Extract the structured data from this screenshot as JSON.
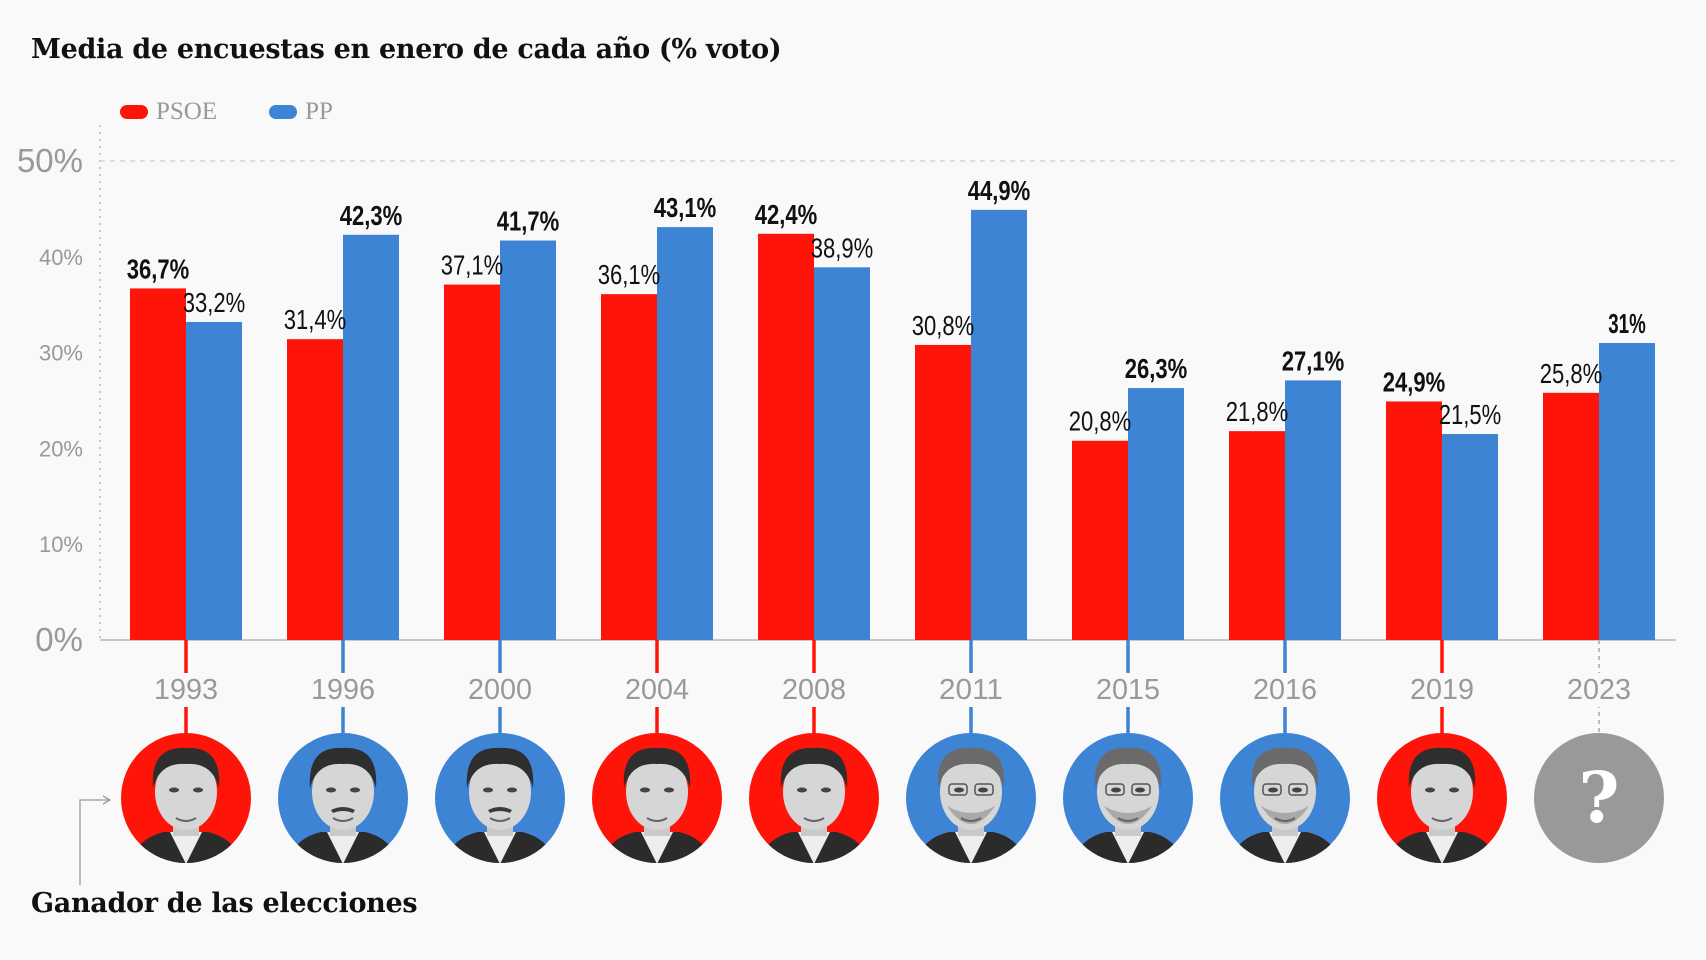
{
  "title": "Media de encuestas en enero de cada año (% voto)",
  "caption": "Ganador de las elecciones",
  "colors": {
    "PSOE": "#ff1409",
    "PP": "#3d84d4",
    "unknown": "#999999",
    "axis": "#cccccc",
    "text": "#111111",
    "muted": "#999999"
  },
  "legend": [
    {
      "name": "PSOE",
      "color": "#ff1409"
    },
    {
      "name": "PP",
      "color": "#3d84d4"
    }
  ],
  "chart_data": {
    "type": "bar",
    "title": "Media de encuestas en enero de cada año (% voto)",
    "xlabel": "",
    "ylabel": "% voto",
    "ylim": [
      0,
      50
    ],
    "yticks": [
      0,
      10,
      20,
      30,
      40,
      50
    ],
    "ytick_labels": [
      "0%",
      "10%",
      "20%",
      "30%",
      "40%",
      "50%"
    ],
    "grid": "dashed line at 50% only",
    "legend_position": "top-left",
    "categories": [
      "1993",
      "1996",
      "2000",
      "2004",
      "2008",
      "2011",
      "2015",
      "2016",
      "2019",
      "2023"
    ],
    "series": [
      {
        "name": "PSOE",
        "values": [
          36.7,
          31.4,
          37.1,
          36.1,
          42.4,
          30.8,
          20.8,
          21.8,
          24.9,
          25.8
        ],
        "labels": [
          "36,7%",
          "31,4%",
          "37,1%",
          "36,1%",
          "42,4%",
          "30,8%",
          "20,8%",
          "21,8%",
          "24,9%",
          "25,8%"
        ],
        "bold": [
          true,
          false,
          false,
          false,
          true,
          false,
          false,
          false,
          true,
          false
        ]
      },
      {
        "name": "PP",
        "values": [
          33.2,
          42.3,
          41.7,
          43.1,
          38.9,
          44.9,
          26.3,
          27.1,
          21.5,
          31
        ],
        "labels": [
          "33,2%",
          "42,3%",
          "41,7%",
          "43,1%",
          "38,9%",
          "44,9%",
          "26,3%",
          "27,1%",
          "21,5%",
          "31%"
        ],
        "bold": [
          false,
          true,
          true,
          true,
          false,
          true,
          true,
          true,
          false,
          true
        ]
      }
    ],
    "winners": [
      {
        "year": "1993",
        "party": "PSOE",
        "portrait": "psoe-leader-1"
      },
      {
        "year": "1996",
        "party": "PP",
        "portrait": "pp-leader-1"
      },
      {
        "year": "2000",
        "party": "PP",
        "portrait": "pp-leader-1"
      },
      {
        "year": "2004",
        "party": "PSOE",
        "portrait": "psoe-leader-2"
      },
      {
        "year": "2008",
        "party": "PSOE",
        "portrait": "psoe-leader-2"
      },
      {
        "year": "2011",
        "party": "PP",
        "portrait": "pp-leader-2"
      },
      {
        "year": "2015",
        "party": "PP",
        "portrait": "pp-leader-2"
      },
      {
        "year": "2016",
        "party": "PP",
        "portrait": "pp-leader-2"
      },
      {
        "year": "2019",
        "party": "PSOE",
        "portrait": "psoe-leader-3"
      },
      {
        "year": "2023",
        "party": "unknown",
        "portrait": "question-mark",
        "symbol": "?"
      }
    ]
  }
}
